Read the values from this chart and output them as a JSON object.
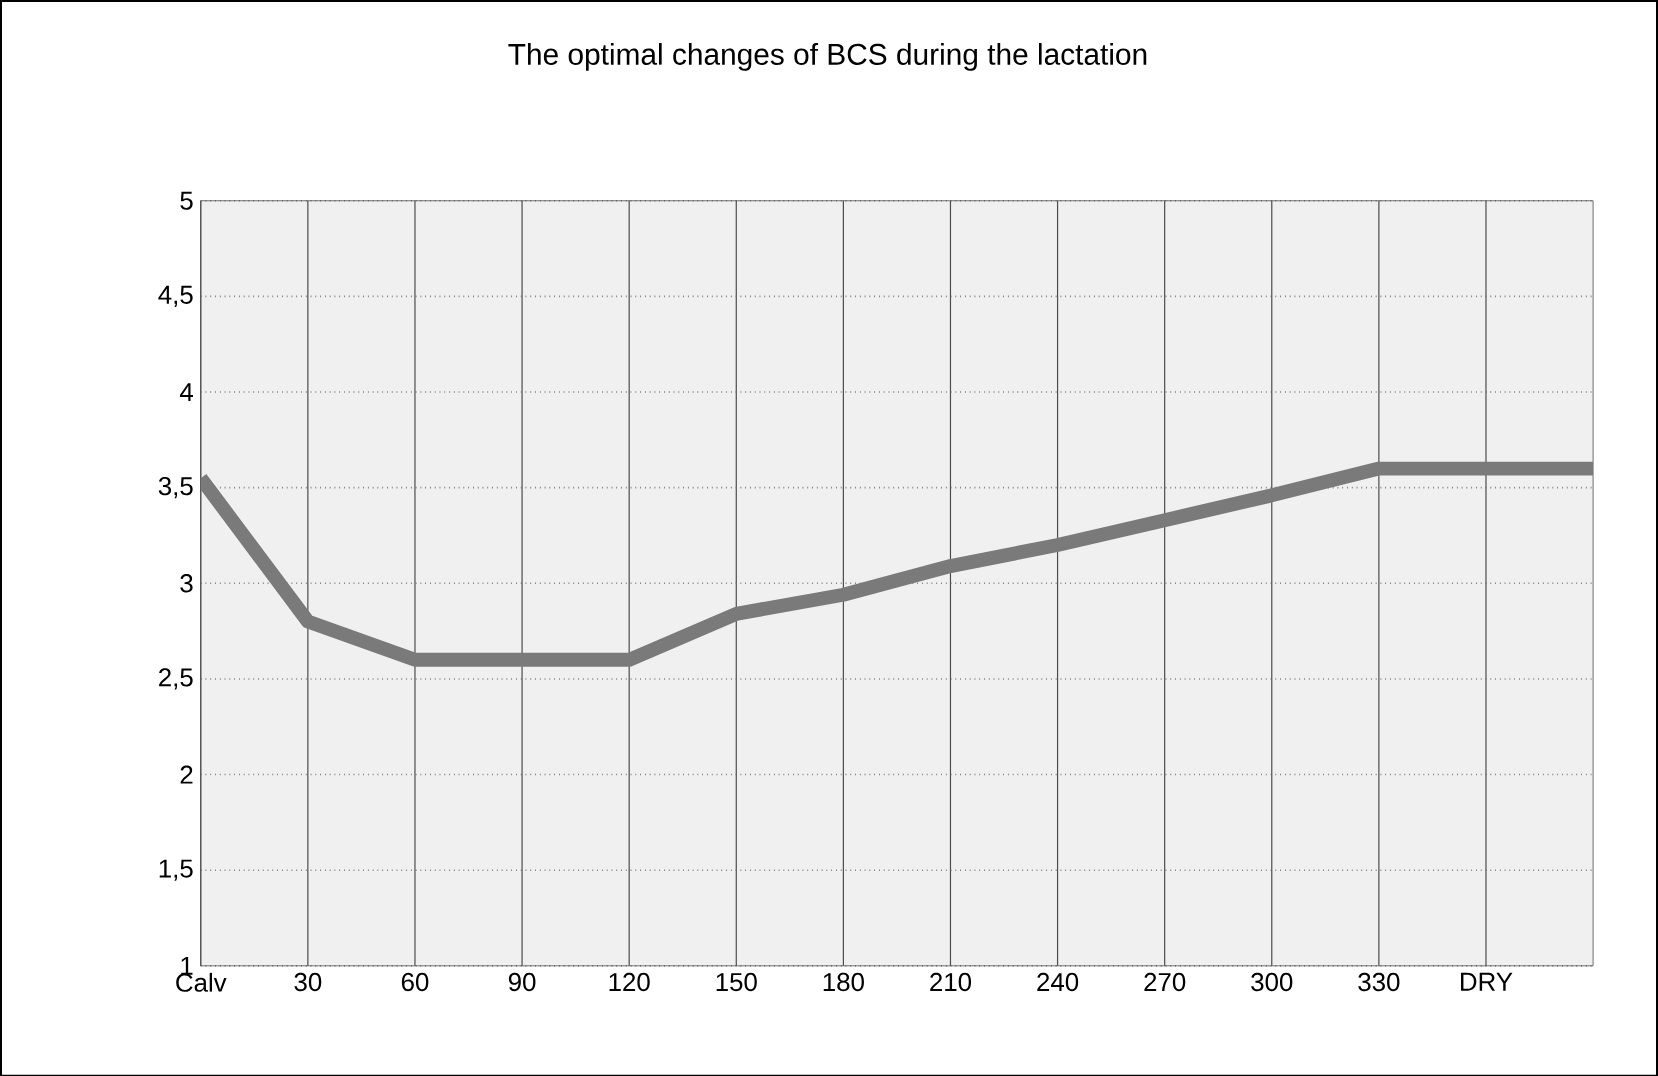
{
  "chart_data": {
    "type": "line",
    "title": "The optimal changes of BCS during the lactation",
    "categories": [
      "Calv",
      "30",
      "60",
      "90",
      "120",
      "150",
      "180",
      "210",
      "240",
      "270",
      "300",
      "330",
      "DRY",
      null
    ],
    "series": [
      {
        "color": "#7a7a7a",
        "values": [
          3.55,
          2.8,
          2.6,
          2.6,
          2.6,
          2.84,
          2.94,
          3.09,
          3.2,
          3.33,
          3.46,
          3.6,
          3.6,
          3.6
        ]
      }
    ],
    "ylim": [
      1,
      5
    ],
    "yticks": [
      1,
      {
        "value": 1.5,
        "label": "1,5"
      },
      2,
      {
        "value": 2.5,
        "label": "2,5"
      },
      3,
      {
        "value": 3.5,
        "label": "3,5"
      },
      4,
      {
        "value": 4.5,
        "label": "4,5"
      },
      5
    ],
    "grid": true,
    "marker": "none",
    "line_style": "solid"
  }
}
